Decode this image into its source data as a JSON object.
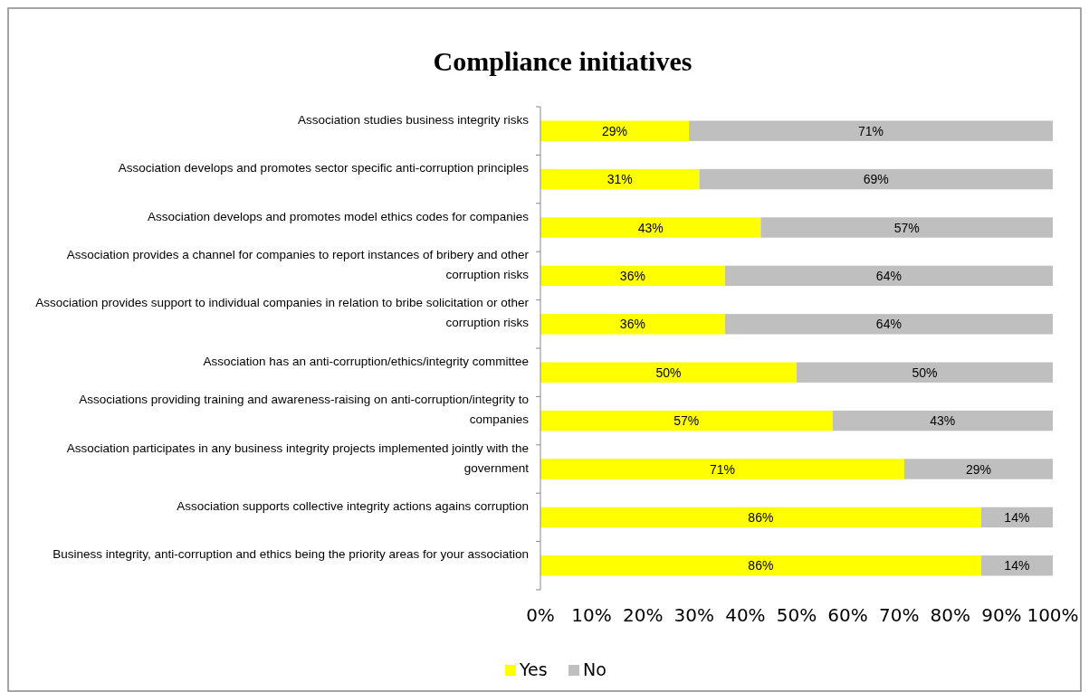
{
  "chart_data": {
    "type": "bar",
    "orientation": "horizontal",
    "stacked": true,
    "title": "Compliance initiatives",
    "categories": [
      "Association studies business integrity risks",
      "Association develops and promotes sector specific anti-corruption principles",
      "Association develops and promotes model ethics codes for companies",
      "Association provides a channel for companies to report instances of bribery and other corruption risks",
      "Association provides support to individual companies in relation to bribe solicitation or other corruption risks",
      "Association has an anti-corruption/ethics/integrity committee",
      "Associations providing training and awareness-raising on anti-corruption/integrity to companies",
      "Association participates in any business integrity projects implemented jointly with the government",
      "Association supports collective integrity actions agains corruption",
      "Business integrity, anti-corruption and ethics being the priority areas for your association"
    ],
    "series": [
      {
        "name": "Yes",
        "color": "#ffff00",
        "values": [
          29,
          31,
          43,
          36,
          36,
          50,
          57,
          71,
          86,
          86
        ],
        "value_labels": [
          "29%",
          "31%",
          "43%",
          "36%",
          "36%",
          "50%",
          "57%",
          "71%",
          "86%",
          "86%"
        ]
      },
      {
        "name": "No",
        "color": "#bfbfbf",
        "values": [
          71,
          69,
          57,
          64,
          64,
          50,
          43,
          29,
          14,
          14
        ],
        "value_labels": [
          "71%",
          "69%",
          "57%",
          "64%",
          "64%",
          "50%",
          "43%",
          "29%",
          "14%",
          "14%"
        ]
      }
    ],
    "xlim": [
      0,
      100
    ],
    "xticks": [
      {
        "value": 0,
        "label": "0%"
      },
      {
        "value": 10,
        "label": "10%"
      },
      {
        "value": 20,
        "label": "20%"
      },
      {
        "value": 30,
        "label": "30%"
      },
      {
        "value": 40,
        "label": "40%"
      },
      {
        "value": 50,
        "label": "50%"
      },
      {
        "value": 60,
        "label": "60%"
      },
      {
        "value": 70,
        "label": "70%"
      },
      {
        "value": 80,
        "label": "80%"
      },
      {
        "value": 90,
        "label": "90%"
      },
      {
        "value": 100,
        "label": "100%"
      }
    ],
    "grid": false,
    "legend": "bottom"
  }
}
